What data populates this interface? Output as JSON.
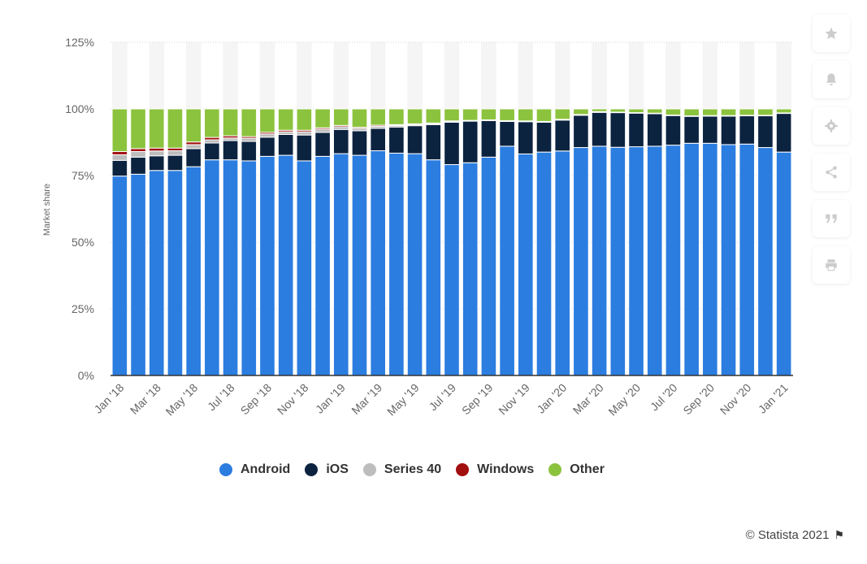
{
  "chart_data": {
    "type": "bar",
    "stacked": true,
    "ylabel": "Market share",
    "xlabel": "",
    "ylim": [
      0,
      125
    ],
    "yticks": [
      "0%",
      "25%",
      "50%",
      "75%",
      "100%",
      "125%"
    ],
    "grid": true,
    "legend_position": "bottom",
    "categories": [
      "Jan '18",
      "Feb '18",
      "Mar '18",
      "Apr '18",
      "May '18",
      "Jun '18",
      "Jul '18",
      "Aug '18",
      "Sep '18",
      "Oct '18",
      "Nov '18",
      "Dec '18",
      "Jan '19",
      "Feb '19",
      "Mar '19",
      "Apr '19",
      "May '19",
      "Jun '19",
      "Jul '19",
      "Aug '19",
      "Sep '19",
      "Oct '19",
      "Nov '19",
      "Dec '19",
      "Jan '20",
      "Feb '20",
      "Mar '20",
      "Apr '20",
      "May '20",
      "Jun '20",
      "Jul '20",
      "Aug '20",
      "Sep '20",
      "Oct '20",
      "Nov '20",
      "Dec '20",
      "Jan '21"
    ],
    "tick_labels": [
      "Jan '18",
      "",
      "Mar '18",
      "",
      "May '18",
      "",
      "Jul '18",
      "",
      "Sep '18",
      "",
      "Nov '18",
      "",
      "Jan '19",
      "",
      "Mar '19",
      "",
      "May '19",
      "",
      "Jul '19",
      "",
      "Sep '19",
      "",
      "Nov '19",
      "",
      "Jan '20",
      "",
      "Mar '20",
      "",
      "May '20",
      "",
      "Jul '20",
      "",
      "Sep '20",
      "",
      "Nov '20",
      "",
      "Jan '21"
    ],
    "series": [
      {
        "name": "Android",
        "color": "#2b7de0",
        "values": [
          74.8,
          75.5,
          76.9,
          76.9,
          78.3,
          80.9,
          80.9,
          80.5,
          82.2,
          82.6,
          80.5,
          82.2,
          83.2,
          82.6,
          84.3,
          83.4,
          83.2,
          80.9,
          79.1,
          79.8,
          81.9,
          86.0,
          83.1,
          83.8,
          84.2,
          85.5,
          86.0,
          85.6,
          85.8,
          86.0,
          86.4,
          87.1,
          87.1,
          86.6,
          86.8,
          85.5,
          83.8
        ]
      },
      {
        "name": "iOS",
        "color": "#0c2340",
        "values": [
          5.9,
          6.4,
          5.5,
          5.7,
          6.8,
          6.3,
          7.2,
          7.3,
          7.2,
          7.8,
          9.7,
          9.0,
          9.1,
          9.2,
          8.4,
          9.8,
          10.5,
          13.2,
          15.9,
          15.6,
          13.7,
          9.3,
          12.1,
          11.2,
          11.6,
          12.1,
          12.7,
          13.0,
          12.6,
          12.2,
          11.1,
          10.1,
          10.2,
          10.7,
          10.6,
          11.9,
          14.5
        ]
      },
      {
        "name": "Series 40",
        "color": "#bdbdbd",
        "values": [
          2.1,
          2.1,
          1.8,
          1.7,
          1.5,
          1.2,
          1.0,
          1.2,
          1.2,
          1.0,
          1.2,
          1.2,
          1.0,
          0.9,
          0.8,
          0.6,
          0.4,
          0.4,
          0.3,
          0.2,
          0.2,
          0.2,
          0.2,
          0.2,
          0.2,
          0.2,
          0.2,
          0.1,
          0.1,
          0.1,
          0.1,
          0.1,
          0.1,
          0.1,
          0.1,
          0.1,
          0.1
        ]
      },
      {
        "name": "Windows",
        "color": "#a20f0f",
        "values": [
          1.2,
          1.1,
          1.1,
          1.0,
          1.0,
          0.9,
          0.8,
          0.6,
          0.6,
          0.6,
          0.6,
          0.5,
          0.5,
          0.4,
          0.4,
          0.3,
          0.3,
          0.2,
          0.2,
          0.1,
          0.1,
          0.1,
          0.1,
          0.1,
          0.1,
          0.1,
          0.1,
          0.1,
          0.1,
          0.1,
          0.1,
          0.1,
          0.1,
          0.1,
          0.1,
          0.1,
          0.1
        ]
      },
      {
        "name": "Other",
        "color": "#8cc33e",
        "values": [
          16.0,
          14.9,
          14.7,
          14.7,
          12.4,
          10.7,
          10.1,
          10.4,
          8.8,
          8.0,
          8.0,
          7.1,
          6.2,
          6.9,
          6.1,
          5.9,
          5.6,
          5.3,
          4.5,
          4.3,
          4.1,
          4.4,
          4.5,
          4.7,
          3.9,
          2.1,
          1.0,
          1.2,
          1.4,
          1.6,
          2.3,
          2.6,
          2.5,
          2.5,
          2.4,
          2.4,
          1.5
        ]
      }
    ]
  },
  "toolbar": {
    "icons": [
      "star-icon",
      "bell-icon",
      "gear-icon",
      "share-icon",
      "quote-icon",
      "print-icon"
    ]
  },
  "credits": {
    "text": "© Statista 2021"
  }
}
